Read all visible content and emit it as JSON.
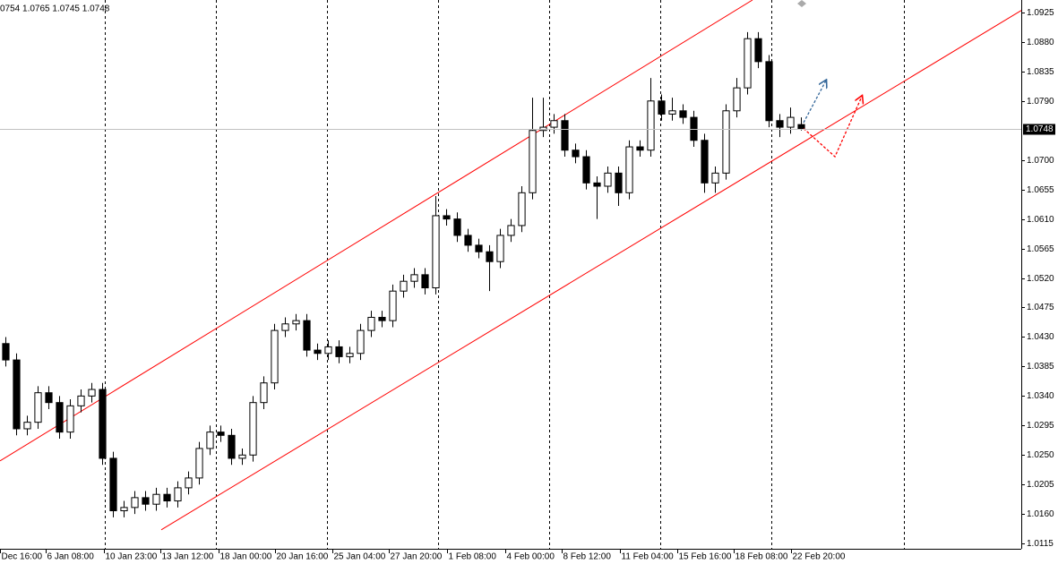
{
  "chart_data": {
    "type": "candlestick",
    "title": "0754 1.0765 1.0745 1.0748",
    "open": [
      1.042,
      1.0395,
      1.029,
      1.03,
      1.0345,
      1.033,
      1.0285,
      1.0325,
      1.034,
      1.035,
      1.0245,
      1.0165,
      1.017,
      1.0185,
      1.0175,
      1.019,
      1.018,
      1.02,
      1.0215,
      1.026,
      1.0285,
      1.028,
      1.0245,
      1.025,
      1.033,
      1.036,
      1.044,
      1.045,
      1.0455,
      1.041,
      1.0405,
      1.0415,
      1.04,
      1.0405,
      1.044,
      1.046,
      1.0455,
      1.05,
      1.0515,
      1.0525,
      1.0505,
      1.0615,
      1.061,
      1.0585,
      1.057,
      1.056,
      1.0545,
      1.0585,
      1.06,
      1.065,
      1.0745,
      1.075,
      1.076,
      1.0715,
      1.0705,
      1.0665,
      1.066,
      1.068,
      1.065,
      1.072,
      1.0715,
      1.079,
      1.077,
      1.0775,
      1.0765,
      1.073,
      1.0665,
      1.068,
      1.0775,
      1.081,
      1.0885,
      1.085,
      1.076,
      1.075,
      1.0754
    ],
    "high": [
      1.043,
      1.0405,
      1.031,
      1.0355,
      1.0355,
      1.034,
      1.0335,
      1.035,
      1.036,
      1.036,
      1.0255,
      1.018,
      1.0195,
      1.0195,
      1.02,
      1.02,
      1.021,
      1.0225,
      1.027,
      1.0295,
      1.0295,
      1.029,
      1.026,
      1.034,
      1.037,
      1.045,
      1.046,
      1.0465,
      1.0465,
      1.042,
      1.0425,
      1.0425,
      1.0415,
      1.045,
      1.047,
      1.047,
      1.051,
      1.0525,
      1.0535,
      1.0535,
      1.0645,
      1.0625,
      1.062,
      1.0595,
      1.058,
      1.057,
      1.0595,
      1.061,
      1.066,
      1.0795,
      1.0795,
      1.077,
      1.077,
      1.0725,
      1.0715,
      1.0675,
      1.069,
      1.069,
      1.073,
      1.073,
      1.0825,
      1.08,
      1.0795,
      1.0785,
      1.0775,
      1.074,
      1.069,
      1.0785,
      1.0825,
      1.0895,
      1.0895,
      1.086,
      1.077,
      1.078,
      1.0765
    ],
    "low": [
      1.0385,
      1.028,
      1.028,
      1.029,
      1.032,
      1.0275,
      1.0275,
      1.0315,
      1.033,
      1.0235,
      1.0155,
      1.0155,
      1.016,
      1.0165,
      1.0165,
      1.017,
      1.017,
      1.019,
      1.0205,
      1.025,
      1.027,
      1.0235,
      1.0235,
      1.024,
      1.032,
      1.035,
      1.043,
      1.044,
      1.04,
      1.0395,
      1.0395,
      1.039,
      1.039,
      1.0395,
      1.043,
      1.0445,
      1.0445,
      1.049,
      1.0505,
      1.0495,
      1.0495,
      1.06,
      1.0575,
      1.056,
      1.055,
      1.05,
      1.0535,
      1.0575,
      1.059,
      1.064,
      1.0735,
      1.074,
      1.0705,
      1.0695,
      1.0655,
      1.061,
      1.065,
      1.063,
      1.064,
      1.0705,
      1.0705,
      1.076,
      1.076,
      1.0755,
      1.072,
      1.065,
      1.065,
      1.067,
      1.0765,
      1.08,
      1.084,
      1.075,
      1.0735,
      1.074,
      1.0745
    ],
    "close": [
      1.0395,
      1.029,
      1.03,
      1.0345,
      1.033,
      1.0285,
      1.0325,
      1.034,
      1.035,
      1.0245,
      1.0165,
      1.017,
      1.0185,
      1.0175,
      1.019,
      1.018,
      1.02,
      1.0215,
      1.026,
      1.0285,
      1.028,
      1.0245,
      1.025,
      1.033,
      1.036,
      1.044,
      1.045,
      1.0455,
      1.041,
      1.0405,
      1.0415,
      1.04,
      1.0405,
      1.044,
      1.046,
      1.0455,
      1.05,
      1.0515,
      1.0525,
      1.0505,
      1.0615,
      1.061,
      1.0585,
      1.057,
      1.056,
      1.0545,
      1.0585,
      1.06,
      1.065,
      1.0745,
      1.075,
      1.076,
      1.0715,
      1.0705,
      1.0665,
      1.066,
      1.068,
      1.065,
      1.072,
      1.0715,
      1.079,
      1.077,
      1.0775,
      1.0765,
      1.073,
      1.0665,
      1.068,
      1.0775,
      1.081,
      1.0885,
      1.085,
      1.076,
      1.075,
      1.0765,
      1.0748
    ],
    "up_color": "#ffffff",
    "down_color": "#000000",
    "xlim": [
      0,
      95
    ],
    "ylim": [
      1.0107,
      1.0944
    ],
    "yticks": [
      1.0115,
      {
        "value": 1.016,
        "label": "1.0160"
      },
      1.0205,
      {
        "value": 1.025,
        "label": "1.0250"
      },
      1.0295,
      {
        "value": 1.034,
        "label": "1.0340"
      },
      1.0385,
      {
        "value": 1.043,
        "label": "1.0430"
      },
      1.0475,
      {
        "value": 1.052,
        "label": "1.0520"
      },
      1.0565,
      {
        "value": 1.061,
        "label": "1.0610"
      },
      1.0655,
      {
        "value": 1.07,
        "label": "1.0700"
      },
      {
        "value": 1.079,
        "label": "1.0790"
      },
      1.0835,
      {
        "value": 1.088,
        "label": "1.0880"
      },
      1.0925
    ],
    "xticks": [
      {
        "value": 0,
        "label": "Dec 16:00"
      },
      {
        "value": 4.25,
        "label": "6 Jan 08:00"
      },
      {
        "value": 9.67,
        "label": "10 Jan 23:00"
      },
      {
        "value": 14.92,
        "label": "13 Jan 12:00"
      },
      {
        "value": 20.33,
        "label": "18 Jan 00:00"
      },
      {
        "value": 25.58,
        "label": "20 Jan 16:00"
      },
      {
        "value": 30.92,
        "label": "25 Jan 04:00"
      },
      {
        "value": 36.17,
        "label": "27 Jan 20:00"
      },
      {
        "value": 41.58,
        "label": "1 Feb 08:00"
      },
      {
        "value": 47,
        "label": "4 Feb 00:00"
      },
      {
        "value": 52.25,
        "label": "8 Feb 12:00"
      },
      {
        "value": 57.67,
        "label": "11 Feb 04:00"
      },
      {
        "value": 63,
        "label": "15 Feb 16:00"
      },
      {
        "value": 68.25,
        "label": "18 Feb 08:00"
      },
      {
        "value": 73.58,
        "label": "22 Feb 20:00"
      }
    ],
    "separators": [
      9.75,
      20.08,
      30.42,
      40.75,
      51.08,
      61.42,
      71.75,
      84.08
    ],
    "channel": {
      "color": "#ff0000",
      "lines": [
        {
          "x": [
            0,
            70
          ],
          "y": [
            1.0241,
            1.0944
          ]
        },
        {
          "x": [
            15,
            95
          ],
          "y": [
            1.0136,
            1.0928
          ]
        }
      ]
    },
    "arrows": [
      {
        "color": "#336699",
        "x": [
          74.75,
          76.83
        ],
        "y": [
          1.0757,
          1.0821
        ]
      },
      {
        "color": "#ff0000",
        "x": [
          74.75,
          77.67,
          80.17
        ],
        "y": [
          1.0748,
          1.0705,
          1.0797
        ]
      }
    ]
  }
}
